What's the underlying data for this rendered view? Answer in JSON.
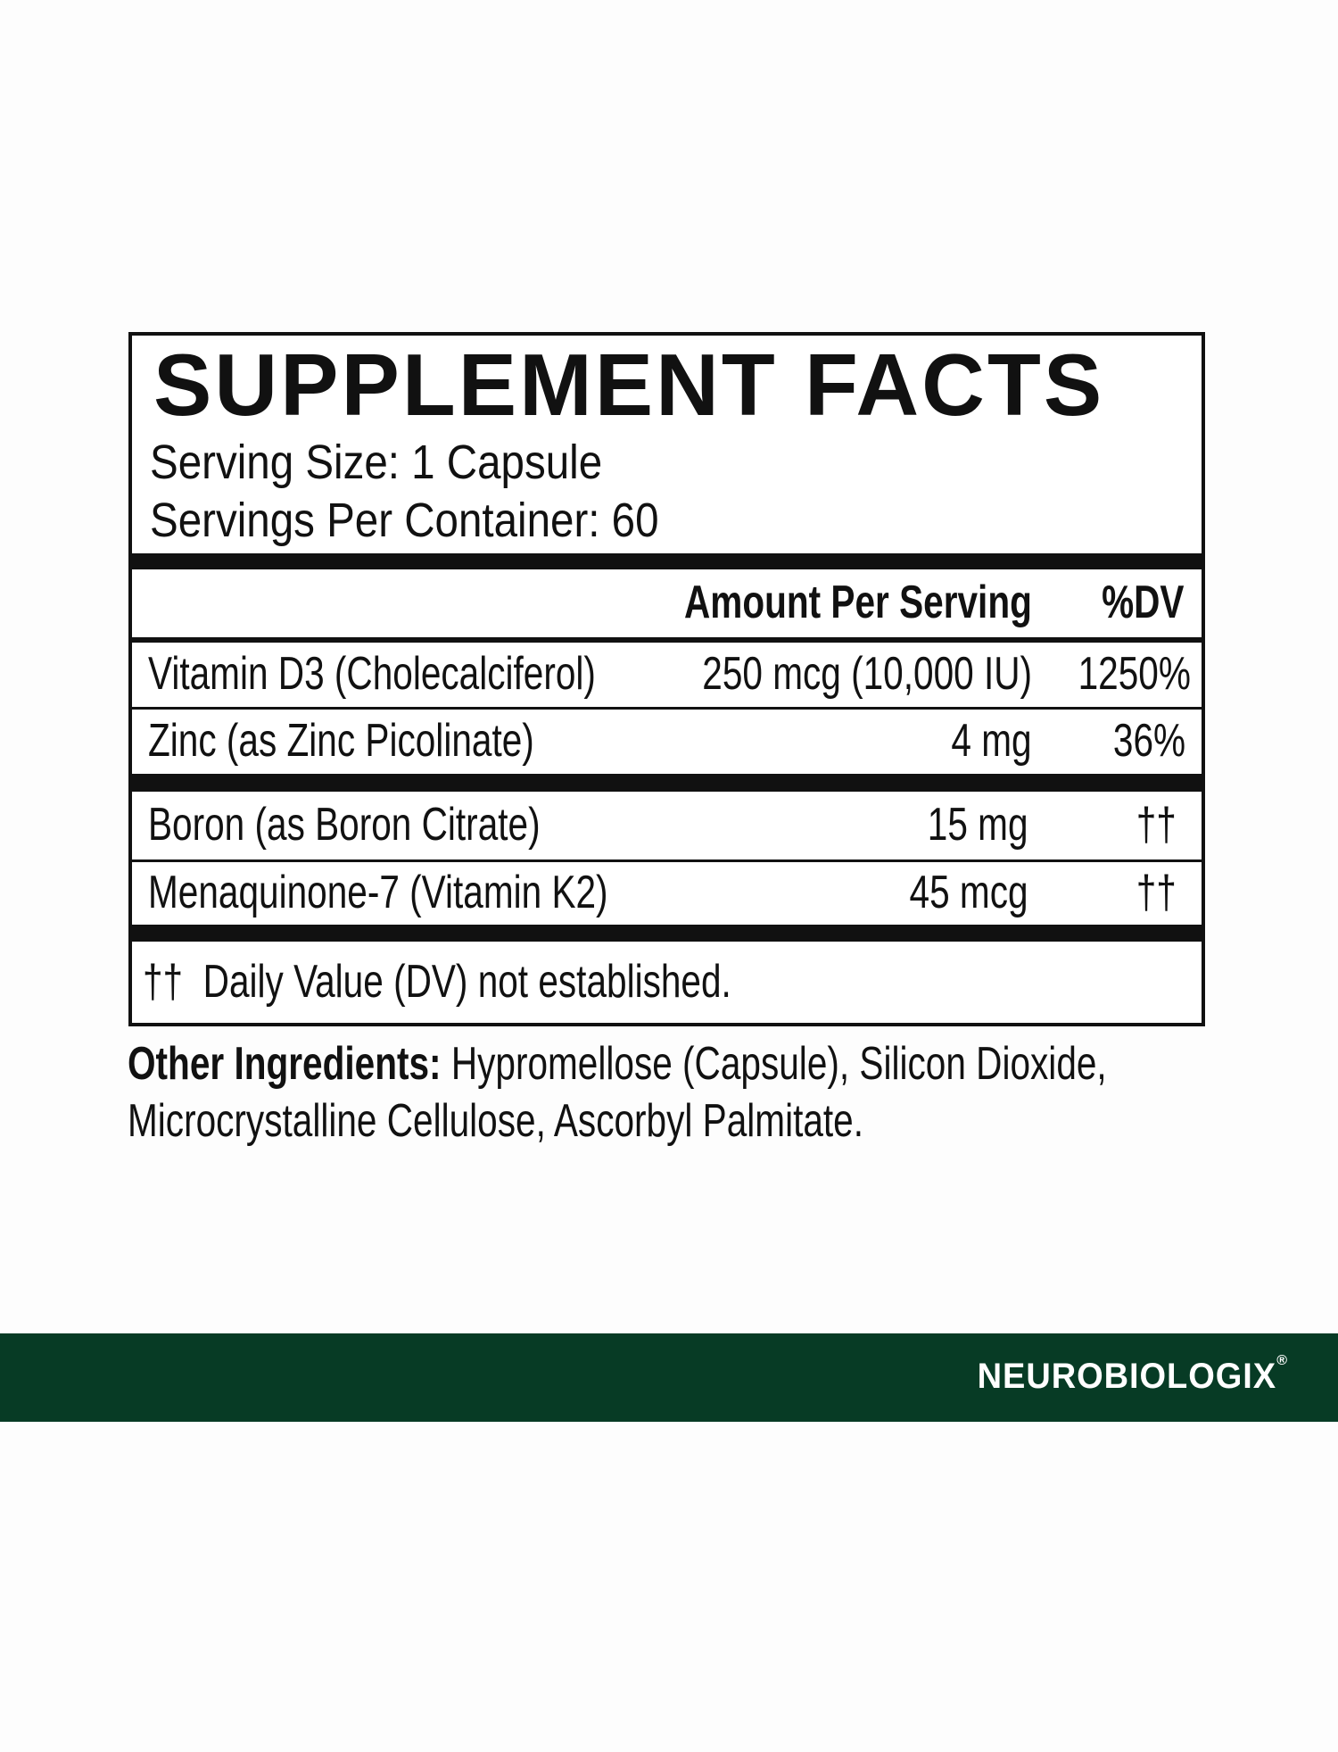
{
  "title": "SUPPLEMENT FACTS",
  "serving_size": "Serving Size: 1 Capsule",
  "servings_per_container": "Servings Per Container: 60",
  "header": {
    "amount": "Amount Per Serving",
    "dv": "%DV"
  },
  "rows": [
    {
      "name": "Vitamin D3 (Cholecalciferol)",
      "amount": "250 mcg (10,000 IU)",
      "dv": "1250%"
    },
    {
      "name": "Zinc (as Zinc Picolinate)",
      "amount": "4 mg",
      "dv": "36%"
    },
    {
      "name": "Boron (as Boron Citrate)",
      "amount": "15 mg",
      "dv": "††"
    },
    {
      "name": "Menaquinone-7 (Vitamin K2)",
      "amount": "45 mcg",
      "dv": "††"
    }
  ],
  "footnote": "††  Daily Value (DV) not established.",
  "other_ingredients": {
    "label": "Other Ingredients:",
    "line1": " Hypromellose (Capsule), Silicon Dioxide,",
    "line2": "Microcrystalline Cellulose, Ascorbyl Palmitate."
  },
  "brand": {
    "name": "NEUROBIOLOGIX",
    "mark": "®"
  },
  "colors": {
    "band": "#073b25",
    "text": "#111111"
  }
}
